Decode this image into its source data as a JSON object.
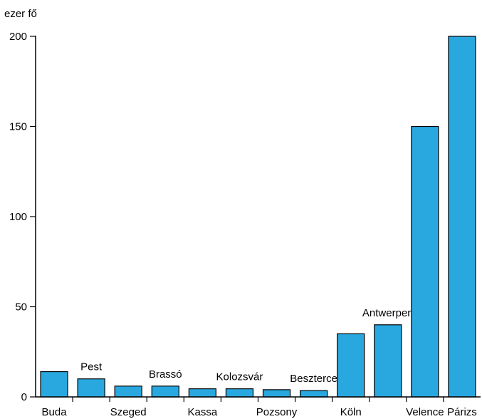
{
  "chart_data": {
    "type": "bar",
    "unit_label": "ezer fő",
    "categories": [
      "Buda",
      "Pest",
      "Szeged",
      "Brassó",
      "Kassa",
      "Kolozsvár",
      "Pozsony",
      "Beszterce",
      "Köln",
      "Antwerpen",
      "Velence",
      "Párizs"
    ],
    "label_row": [
      "bottom",
      "top",
      "bottom",
      "top",
      "bottom",
      "top",
      "bottom",
      "top",
      "bottom",
      "top",
      "bottom",
      "bottom"
    ],
    "values": [
      14,
      10,
      6,
      6,
      4.5,
      4.5,
      4,
      3.5,
      35,
      40,
      150,
      200
    ],
    "ylim": [
      0,
      200
    ],
    "yticks": [
      0,
      50,
      100,
      150,
      200
    ],
    "bar_color": "#29a8e0",
    "grid": false,
    "legend": "none"
  }
}
